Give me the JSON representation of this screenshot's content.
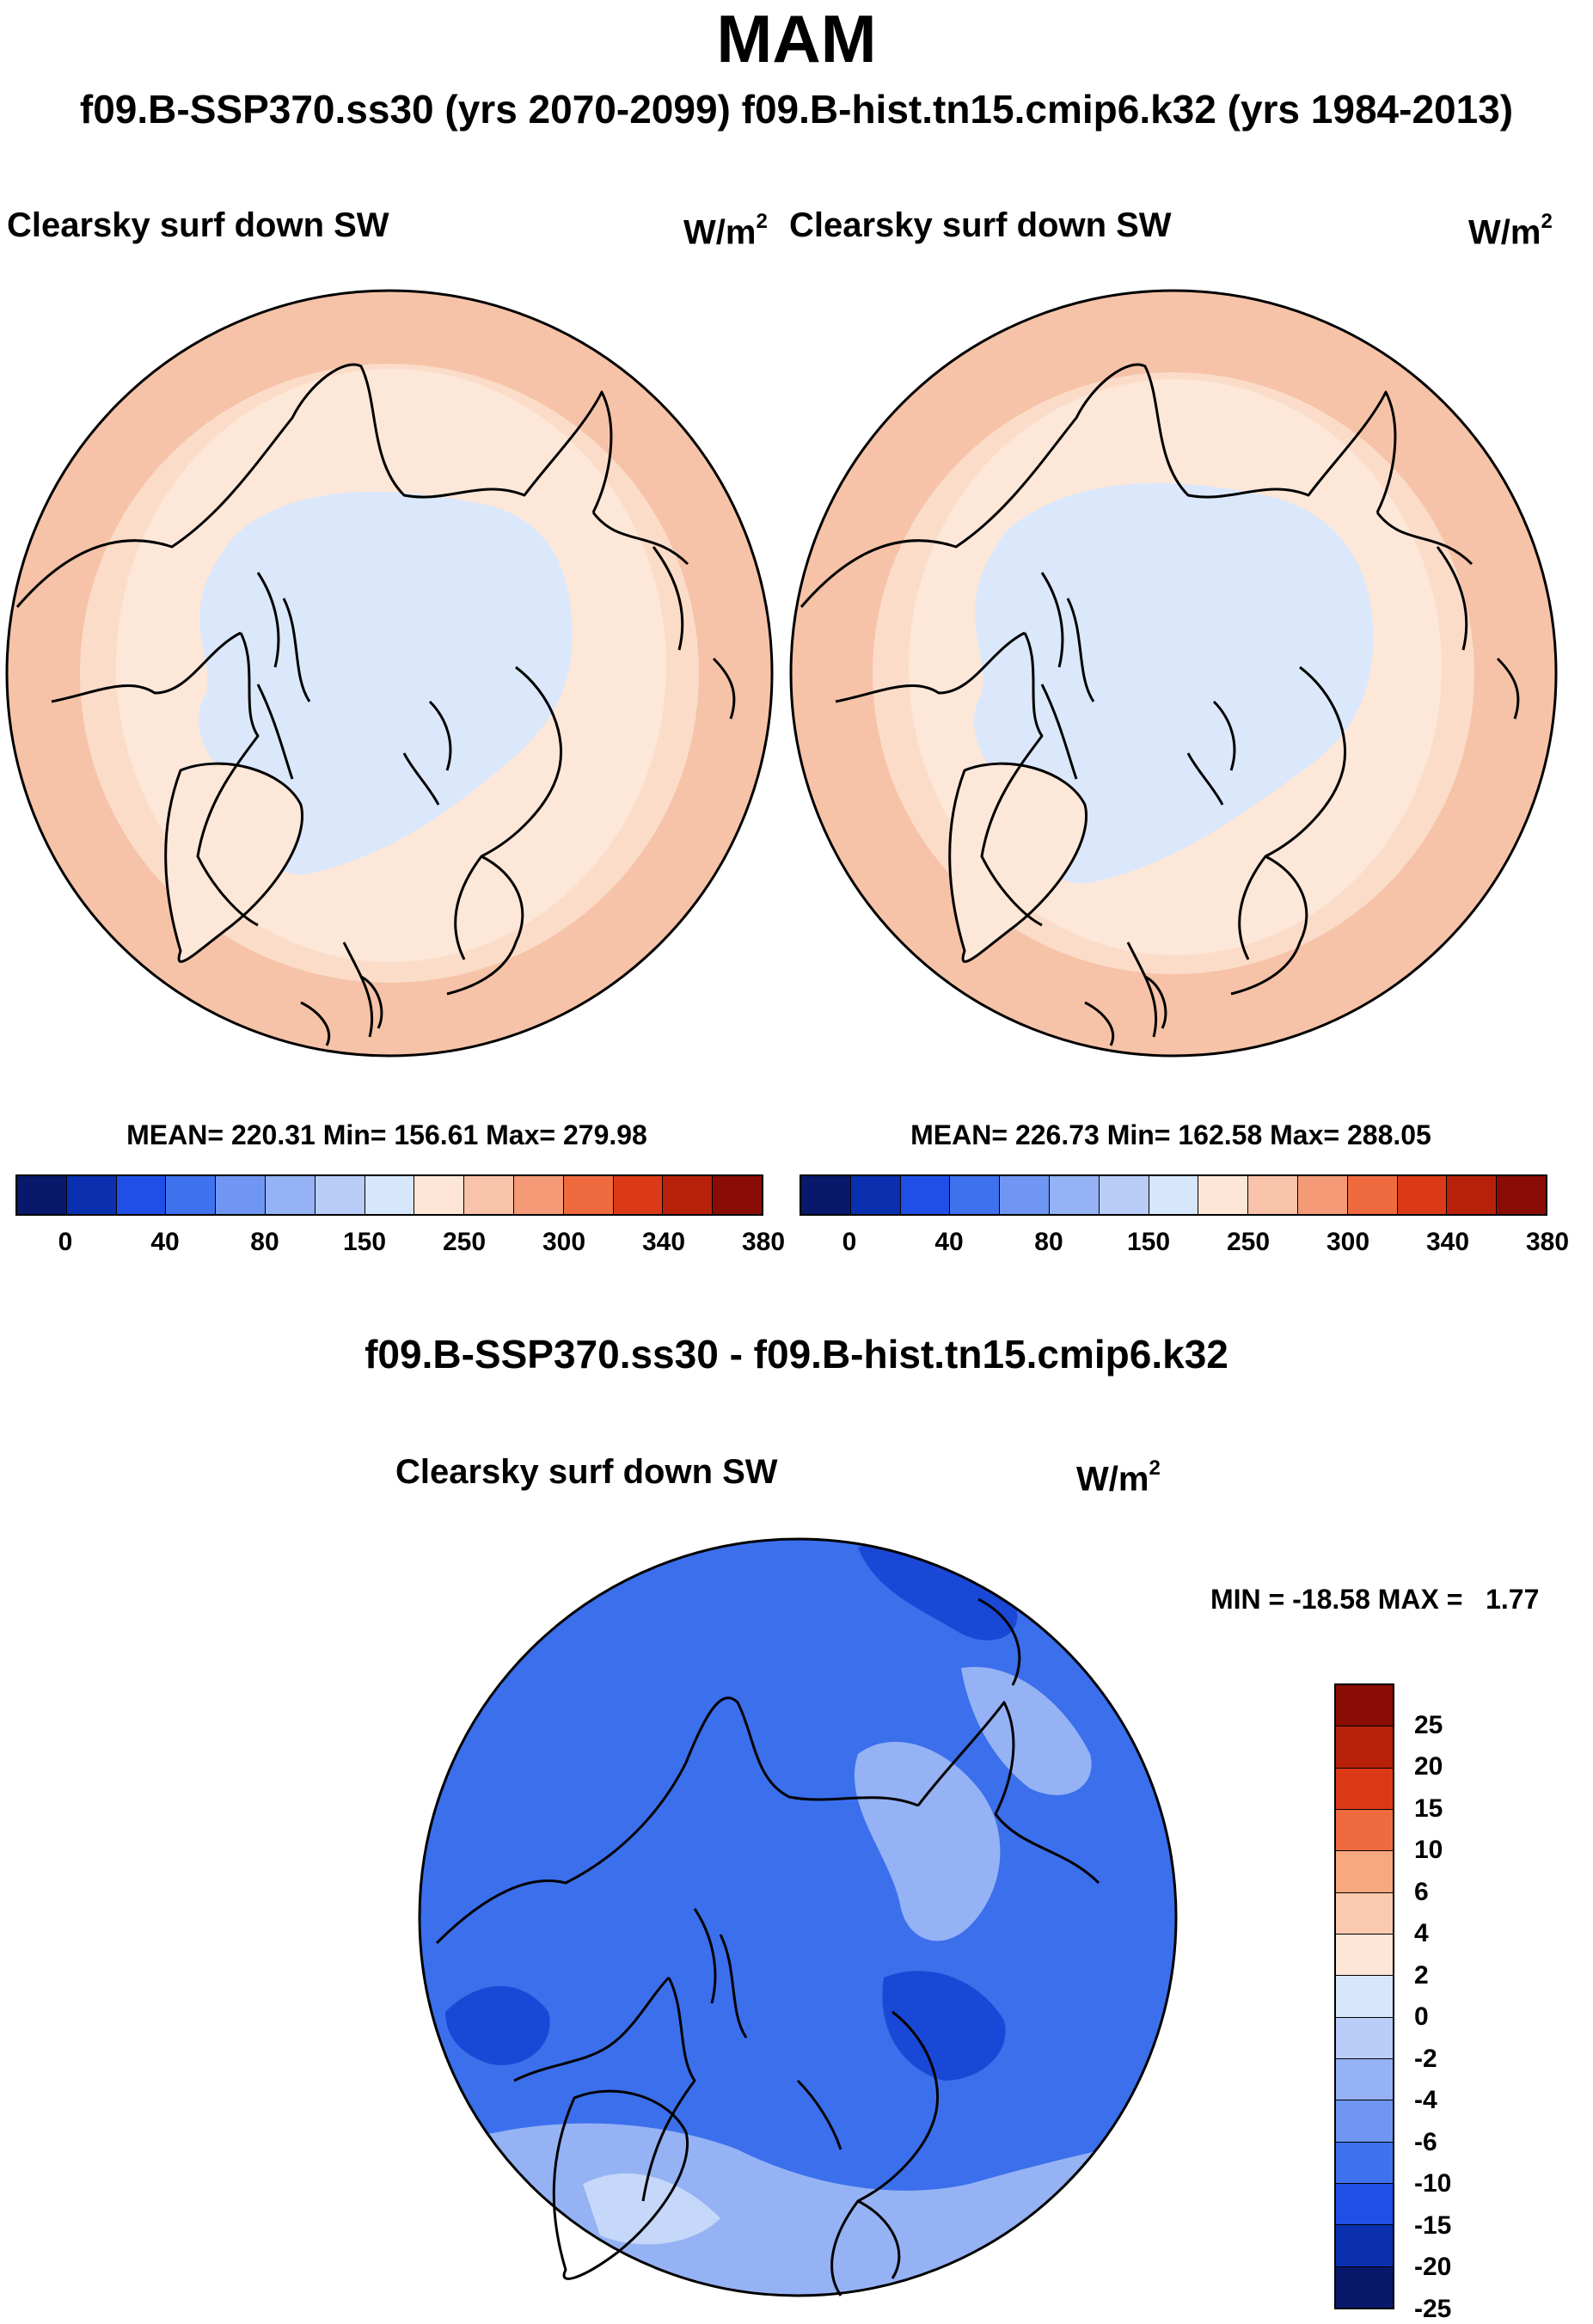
{
  "header": {
    "title": "MAM",
    "subtitle": "f09.B-SSP370.ss30 (yrs 2070-2099)  f09.B-hist.tn15.cmip6.k32 (yrs 1984-2013)"
  },
  "panels": [
    {
      "variable": "Clearsky surf down SW",
      "units_base": "W/m",
      "units_exp": "2",
      "stats": "MEAN= 220.31  Min= 156.61  Max= 279.98"
    },
    {
      "variable": "Clearsky surf down SW",
      "units_base": "W/m",
      "units_exp": "2",
      "stats": "MEAN= 226.73  Min= 162.58  Max= 288.05"
    }
  ],
  "abs_colorbar": {
    "colors": [
      "#08186b",
      "#0a30b0",
      "#1f4fe6",
      "#3f72ef",
      "#6f96f3",
      "#94b2f5",
      "#b9cdf8",
      "#d6e6fb",
      "#fde6d6",
      "#f9c3aa",
      "#f59a76",
      "#ef6b3f",
      "#dc3a16",
      "#b82109",
      "#8a0d05"
    ],
    "labels": [
      "0",
      "40",
      "80",
      "150",
      "250",
      "300",
      "340",
      "380"
    ]
  },
  "diff": {
    "title": "f09.B-SSP370.ss30 - f09.B-hist.tn15.cmip6.k32",
    "variable": "Clearsky surf down SW",
    "units_base": "W/m",
    "units_exp": "2",
    "minmax": "MIN = -18.58 MAX =   1.77"
  },
  "diff_colorbar": {
    "colors": [
      "#8a0d05",
      "#b82109",
      "#dc3a16",
      "#ef6b3f",
      "#f9a77f",
      "#fbc9b0",
      "#fde6d6",
      "#d6e6fb",
      "#b9cdf8",
      "#94b2f5",
      "#6f96f3",
      "#3f72ef",
      "#1f4fe6",
      "#0a30b0",
      "#08186b"
    ],
    "labels": [
      "25",
      "20",
      "15",
      "10",
      "6",
      "4",
      "2",
      "0",
      "-2",
      "-4",
      "-6",
      "-10",
      "-15",
      "-20",
      "-25"
    ]
  },
  "map_colors": {
    "ring_outer": "#f6c3a8",
    "ring_mid": "#fbdcc9",
    "land_warm": "#fde7d8",
    "ocean_cold": "#dbe8fb",
    "diff_base": "#3b6fec",
    "diff_dark": "#1a48d6",
    "diff_light": "#95b2f4",
    "diff_pale": "#c6d8f9"
  }
}
